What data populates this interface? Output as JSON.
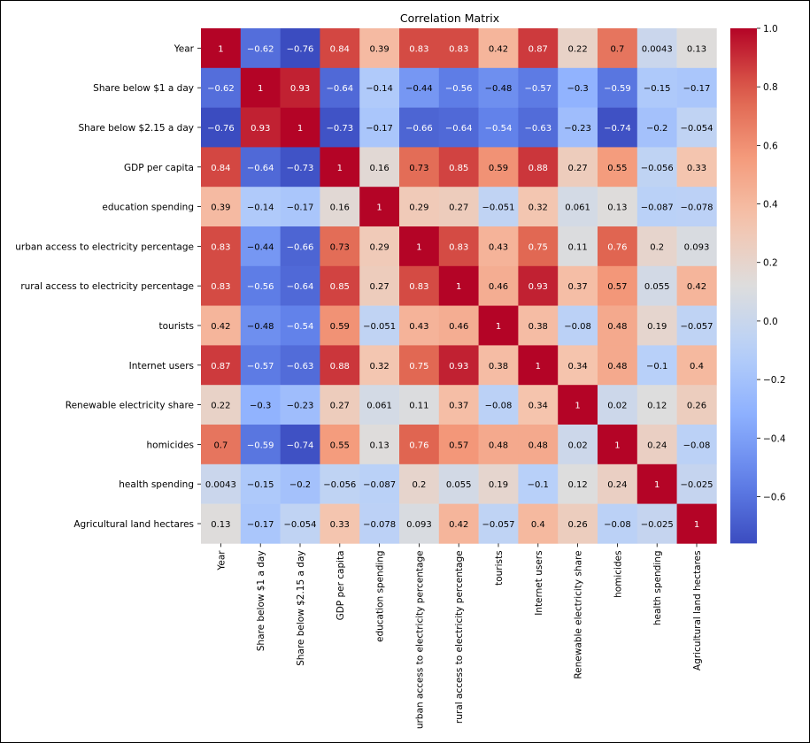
{
  "chart_data": {
    "type": "heatmap",
    "title": "Correlation Matrix",
    "labels": [
      "Year",
      "Share below $1 a day",
      "Share below $2.15 a day",
      "GDP per capita",
      "education spending",
      "urban access to electricity percentage",
      "rural access to electricity percentage",
      "tourists",
      "Internet users",
      "Renewable electricity share",
      "homicides",
      "health spending",
      "Agricultural land hectares"
    ],
    "values": [
      [
        1,
        -0.62,
        -0.76,
        0.84,
        0.39,
        0.83,
        0.83,
        0.42,
        0.87,
        0.22,
        0.7,
        0.0043,
        0.13
      ],
      [
        -0.62,
        1,
        0.93,
        -0.64,
        -0.14,
        -0.44,
        -0.56,
        -0.48,
        -0.57,
        -0.3,
        -0.59,
        -0.15,
        -0.17
      ],
      [
        -0.76,
        0.93,
        1,
        -0.73,
        -0.17,
        -0.66,
        -0.64,
        -0.54,
        -0.63,
        -0.23,
        -0.74,
        -0.2,
        -0.054
      ],
      [
        0.84,
        -0.64,
        -0.73,
        1,
        0.16,
        0.73,
        0.85,
        0.59,
        0.88,
        0.27,
        0.55,
        -0.056,
        0.33
      ],
      [
        0.39,
        -0.14,
        -0.17,
        0.16,
        1,
        0.29,
        0.27,
        -0.051,
        0.32,
        0.061,
        0.13,
        -0.087,
        -0.078
      ],
      [
        0.83,
        -0.44,
        -0.66,
        0.73,
        0.29,
        1,
        0.83,
        0.43,
        0.75,
        0.11,
        0.76,
        0.2,
        0.093
      ],
      [
        0.83,
        -0.56,
        -0.64,
        0.85,
        0.27,
        0.83,
        1,
        0.46,
        0.93,
        0.37,
        0.57,
        0.055,
        0.42
      ],
      [
        0.42,
        -0.48,
        -0.54,
        0.59,
        -0.051,
        0.43,
        0.46,
        1,
        0.38,
        -0.08,
        0.48,
        0.19,
        -0.057
      ],
      [
        0.87,
        -0.57,
        -0.63,
        0.88,
        0.32,
        0.75,
        0.93,
        0.38,
        1,
        0.34,
        0.48,
        -0.1,
        0.4
      ],
      [
        0.22,
        -0.3,
        -0.23,
        0.27,
        0.061,
        0.11,
        0.37,
        -0.08,
        0.34,
        1,
        0.02,
        0.12,
        0.26
      ],
      [
        0.7,
        -0.59,
        -0.74,
        0.55,
        0.13,
        0.76,
        0.57,
        0.48,
        0.48,
        0.02,
        1,
        0.24,
        -0.08
      ],
      [
        0.0043,
        -0.15,
        -0.2,
        -0.056,
        -0.087,
        0.2,
        0.055,
        0.19,
        -0.1,
        0.12,
        0.24,
        1,
        -0.025
      ],
      [
        0.13,
        -0.17,
        -0.054,
        0.33,
        -0.078,
        0.093,
        0.42,
        -0.057,
        0.4,
        0.26,
        -0.08,
        -0.025,
        1
      ]
    ],
    "colormap": "coolwarm",
    "color_range": [
      -0.76,
      1.0
    ],
    "colorbar_ticks": [
      1.0,
      0.8,
      0.6,
      0.4,
      0.2,
      0.0,
      -0.2,
      -0.4,
      -0.6
    ],
    "colorbar_tick_labels": [
      "1.0",
      "0.8",
      "0.6",
      "0.4",
      "0.2",
      "0.0",
      "−0.2",
      "−0.4",
      "−0.6"
    ],
    "annotations": true,
    "colors": {
      "low": "#3b4cc0",
      "mid": "#dddddd",
      "high": "#b40426"
    }
  }
}
